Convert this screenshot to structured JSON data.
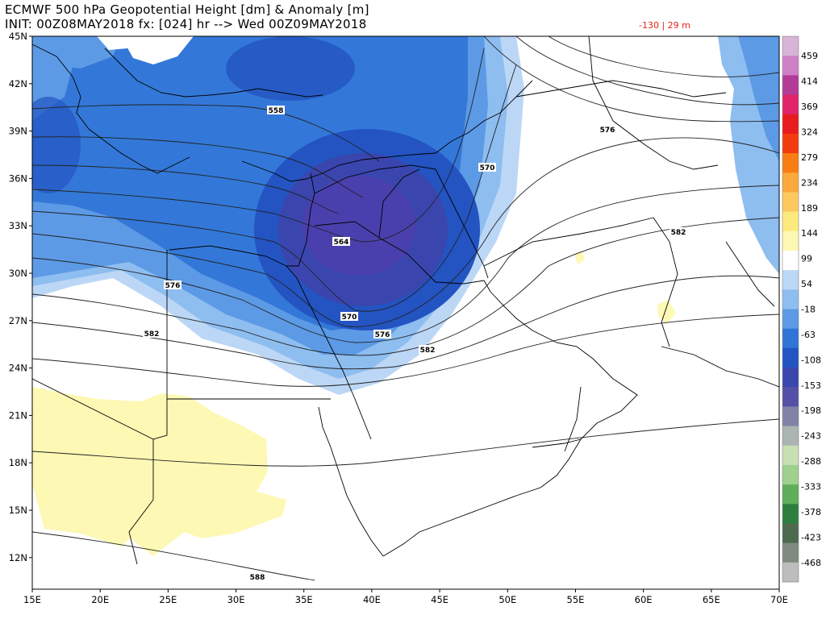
{
  "header": {
    "title": "ECMWF 500 hPa Geopotential Height [dm] & Anomaly [m]",
    "init_line": "INIT: 00Z08MAY2018 fx: [024] hr --> Wed 00Z09MAY2018",
    "min_max": "-130 |  29 m"
  },
  "map": {
    "lon_labels": [
      "15E",
      "20E",
      "25E",
      "30E",
      "35E",
      "40E",
      "45E",
      "50E",
      "55E",
      "60E",
      "65E",
      "70E"
    ],
    "lat_labels": [
      "45N",
      "42N",
      "39N",
      "36N",
      "33N",
      "30N",
      "27N",
      "24N",
      "21N",
      "18N",
      "15N",
      "12N"
    ],
    "height_contour_labels": [
      "558",
      "564",
      "570",
      "576",
      "582",
      "588"
    ]
  },
  "colorbar": {
    "labels": [
      "459",
      "414",
      "369",
      "324",
      "279",
      "234",
      "189",
      "144",
      "99",
      "54",
      "-18",
      "-63",
      "-108",
      "-153",
      "-198",
      "-243",
      "-288",
      "-333",
      "-378",
      "-423",
      "-468"
    ],
    "colors": {
      "warm": [
        "#d8b4d6",
        "#cf7fc6",
        "#b43a97",
        "#e0246a",
        "#e81c1c",
        "#f23b0f",
        "#f87d12",
        "#fca83a",
        "#fdc95e",
        "#fdea7f",
        "#fdf8b4"
      ],
      "cold": [
        "#bcd7f6",
        "#8ebdf0",
        "#5c9ae6",
        "#2f74d6",
        "#2354c2",
        "#3a46ae",
        "#5450a8",
        "#8082a8",
        "#aab4b0",
        "#c8dfb4",
        "#9fd08e",
        "#5fae5c",
        "#2d7f3d",
        "#4d6a4f",
        "#7f8b80",
        "#bdbdbd"
      ]
    }
  }
}
